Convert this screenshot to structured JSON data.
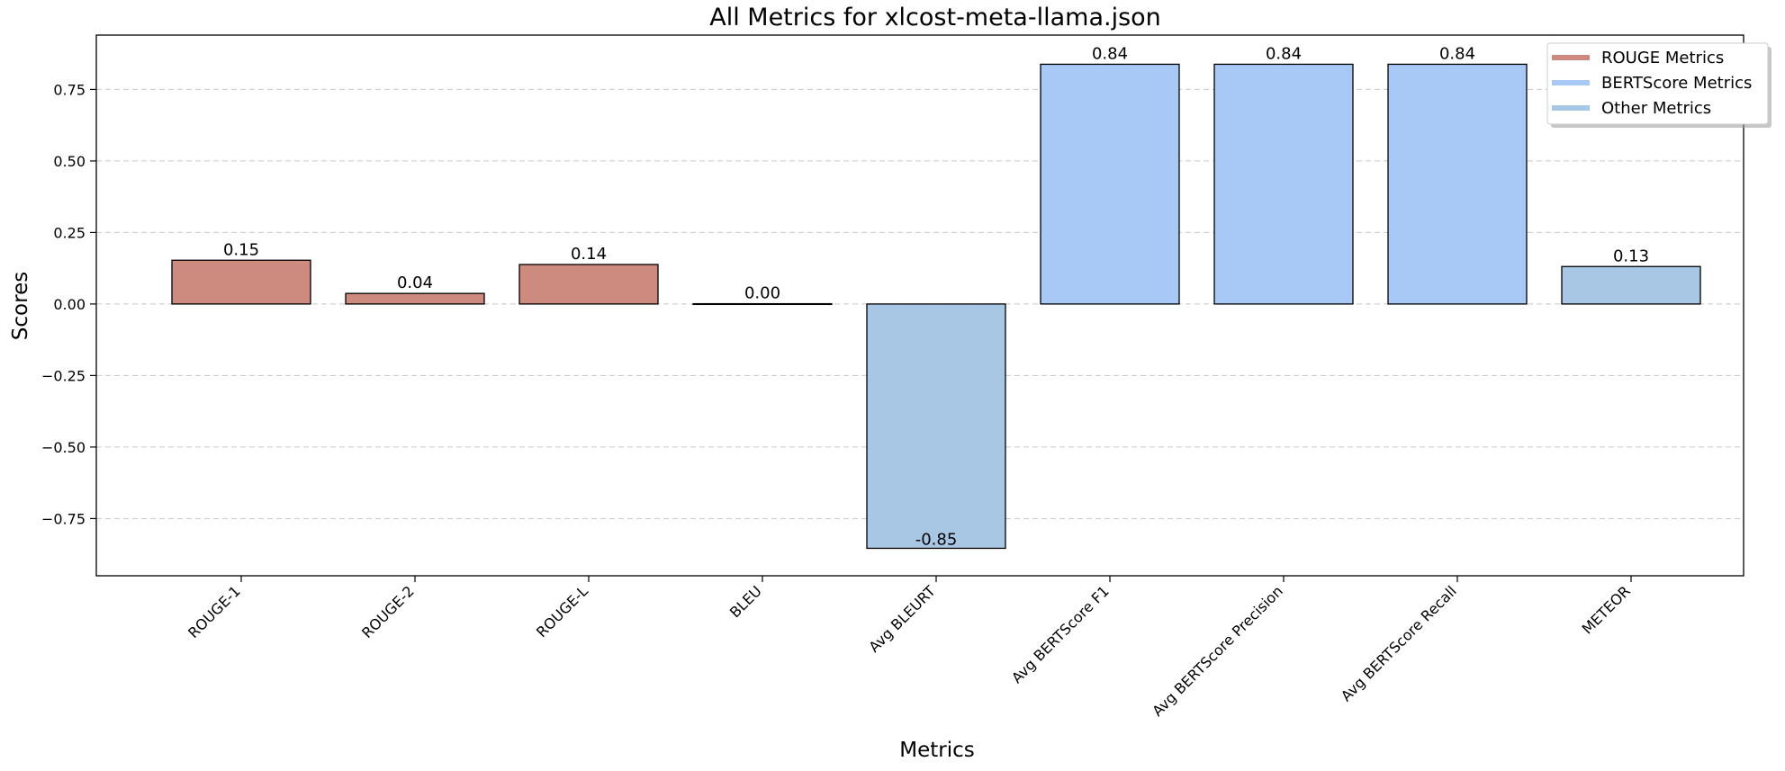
{
  "chart_data": {
    "type": "bar",
    "title": "All Metrics for xlcost-meta-llama.json",
    "xlabel": "Metrics",
    "ylabel": "Scores",
    "categories": [
      "ROUGE-1",
      "ROUGE-2",
      "ROUGE-L",
      "BLEU",
      "Avg BLEURT",
      "Avg BERTScore F1",
      "Avg BERTScore Precision",
      "Avg BERTScore Recall",
      "METEOR"
    ],
    "values": [
      0.153,
      0.037,
      0.138,
      0.001,
      -0.854,
      0.838,
      0.838,
      0.838,
      0.131
    ],
    "data_labels": [
      "0.15",
      "0.04",
      "0.14",
      "0.00",
      "-0.85",
      "0.84",
      "0.84",
      "0.84",
      "0.13"
    ],
    "groups": [
      "ROUGE Metrics",
      "ROUGE Metrics",
      "ROUGE Metrics",
      "ROUGE Metrics",
      "Other Metrics",
      "BERTScore Metrics",
      "BERTScore Metrics",
      "BERTScore Metrics",
      "Other Metrics"
    ],
    "legend": [
      {
        "label": "ROUGE Metrics",
        "color": "#cd8a7e"
      },
      {
        "label": "BERTScore Metrics",
        "color": "#a8c9f5"
      },
      {
        "label": "Other Metrics",
        "color": "#a7c7e5"
      }
    ],
    "yticks": [
      -0.75,
      -0.5,
      -0.25,
      0.0,
      0.25,
      0.5,
      0.75
    ],
    "ytick_labels": [
      "−0.75",
      "−0.50",
      "−0.25",
      "0.00",
      "0.25",
      "0.50",
      "0.75"
    ],
    "ylim": [
      -0.95,
      0.94
    ],
    "grid": "y-dashed",
    "legend_position": "top-right"
  }
}
